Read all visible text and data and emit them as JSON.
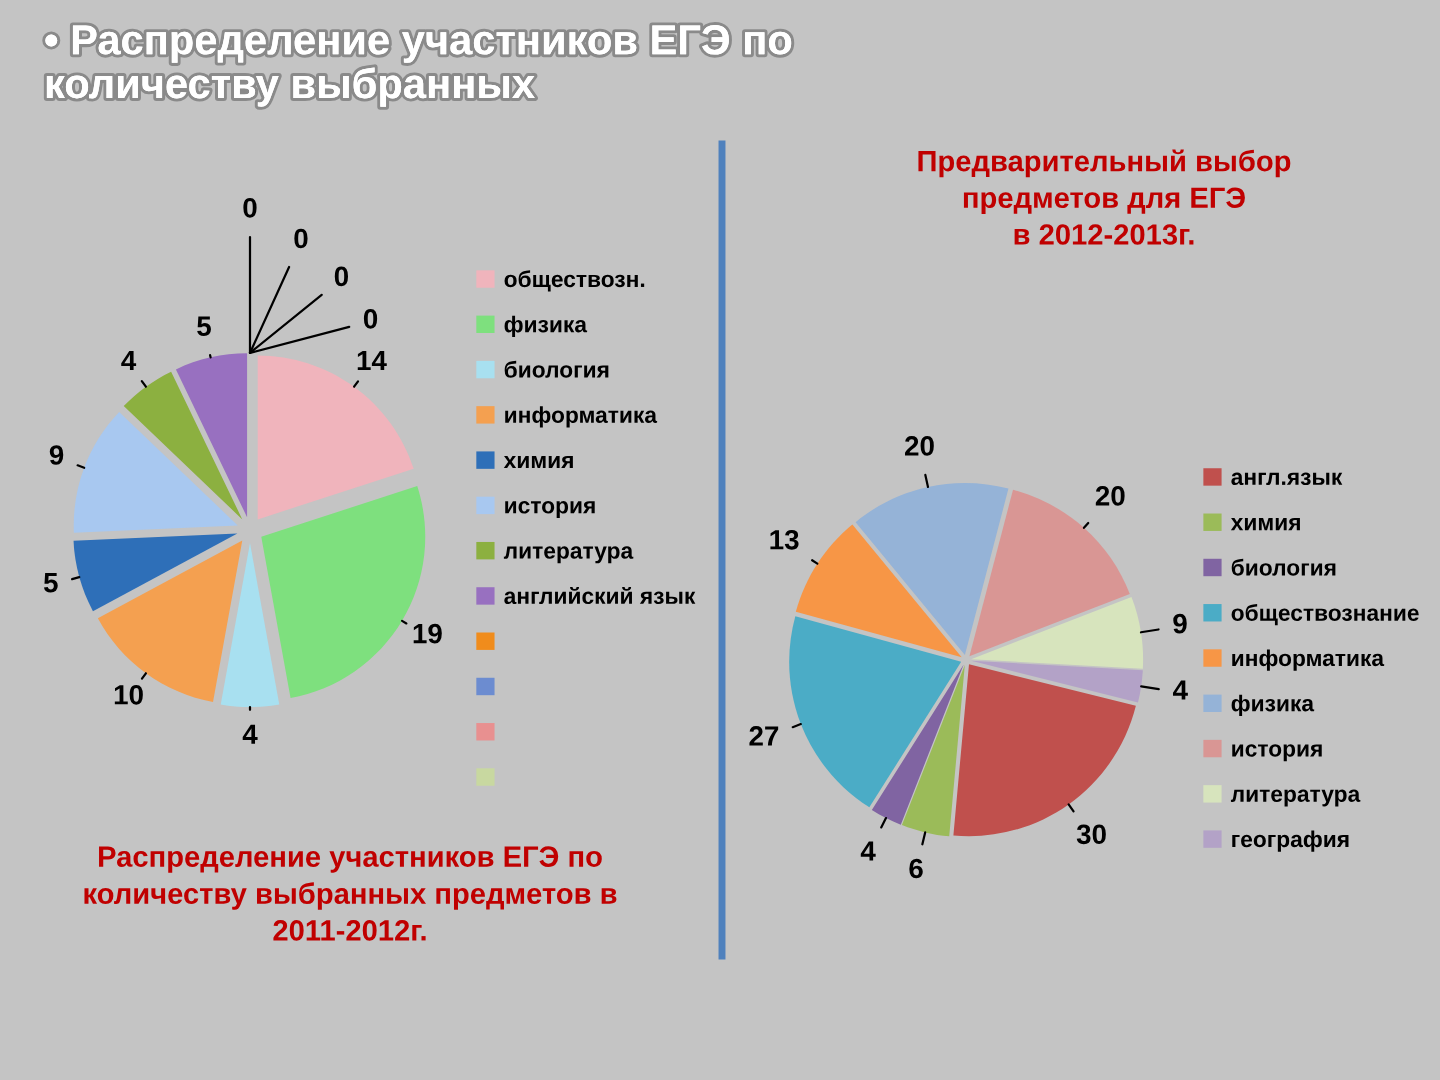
{
  "chart_data": [
    {
      "type": "pie",
      "title": "Распределение участников ЕГЭ по\nколичеству выбранных предметов в\n2011-2012г.",
      "annotations": [
        "• Распределение участников ЕГЭ по\nколичеству выбранных"
      ],
      "categories": [
        "обществозн.",
        "физика",
        "биология",
        "информатика",
        "химия",
        "история",
        "литература",
        "английский язык",
        null,
        null,
        null,
        null
      ],
      "values": [
        14,
        19,
        4,
        10,
        5,
        9,
        4,
        5,
        0,
        0,
        0,
        0
      ],
      "value_labels": [
        "14",
        "19",
        "4",
        "10",
        "5",
        "9",
        "4",
        "5",
        "0",
        "0",
        "0",
        "0"
      ],
      "colors": [
        "#f0b4bc",
        "#7ee07e",
        "#a8e0f0",
        "#f4a050",
        "#2e6fb8",
        "#a8c8f0",
        "#8cb040",
        "#9870c0",
        "#f08c1c",
        "#6c8cd0",
        "#e89090",
        "#c8d8a0"
      ],
      "legend": "right"
    },
    {
      "type": "pie",
      "title": "Предварительный выбор\nпредметов для ЕГЭ\nв 2012-2013г.",
      "categories": [
        "англ.язык",
        "химия",
        "биология",
        "обществознание",
        "информатика",
        "физика",
        "история",
        "литература",
        "география"
      ],
      "values": [
        30,
        6,
        4,
        27,
        13,
        20,
        20,
        9,
        4
      ],
      "colors": [
        "#c0504d",
        "#9bbb59",
        "#8064a2",
        "#4bacc6",
        "#f79646",
        "#95b3d7",
        "#d99694",
        "#d7e4bd",
        "#b3a2c7"
      ],
      "data_labels": true,
      "legend": "right"
    }
  ]
}
